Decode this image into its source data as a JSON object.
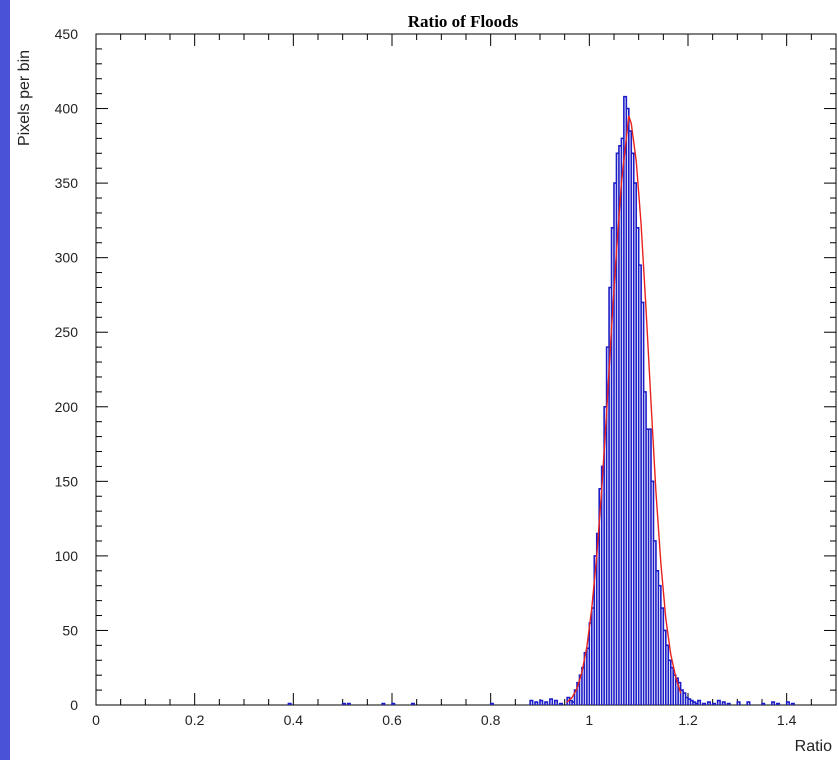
{
  "colors": {
    "histogram": "#1c1cc8",
    "fit": "#e8231e",
    "left_strip": "#4a52d8",
    "axes": "#000000"
  },
  "chart_data": {
    "type": "line",
    "title": "Ratio of Floods",
    "xlabel": "Ratio",
    "ylabel": "Pixels per bin",
    "xlim": [
      0,
      1.5
    ],
    "ylim": [
      0,
      450
    ],
    "x_ticks": [
      0,
      0.2,
      0.4,
      0.6,
      0.8,
      1,
      1.2,
      1.4
    ],
    "x_tick_labels": [
      "0",
      "0.2",
      "0.4",
      "0.6",
      "0.8",
      "1",
      "1.2",
      "1.4"
    ],
    "y_ticks": [
      0,
      50,
      100,
      150,
      200,
      250,
      300,
      350,
      400,
      450
    ],
    "y_tick_labels": [
      "0",
      "50",
      "100",
      "150",
      "200",
      "250",
      "300",
      "350",
      "400",
      "450"
    ],
    "grid": false,
    "bin_width": 0.005,
    "series": [
      {
        "style": "step",
        "color": "#1c1cc8",
        "x": [
          0.39,
          0.5,
          0.51,
          0.58,
          0.6,
          0.64,
          0.8,
          0.88,
          0.89,
          0.9,
          0.91,
          0.92,
          0.93,
          0.94,
          0.955,
          0.96,
          0.965,
          0.97,
          0.975,
          0.98,
          0.985,
          0.99,
          0.995,
          1.0,
          1.005,
          1.01,
          1.015,
          1.02,
          1.025,
          1.03,
          1.035,
          1.04,
          1.045,
          1.05,
          1.055,
          1.06,
          1.065,
          1.07,
          1.075,
          1.08,
          1.085,
          1.09,
          1.095,
          1.1,
          1.105,
          1.11,
          1.115,
          1.12,
          1.125,
          1.13,
          1.135,
          1.14,
          1.145,
          1.15,
          1.155,
          1.16,
          1.165,
          1.17,
          1.175,
          1.18,
          1.185,
          1.19,
          1.195,
          1.2,
          1.205,
          1.21,
          1.215,
          1.22,
          1.23,
          1.24,
          1.25,
          1.26,
          1.27,
          1.28,
          1.3,
          1.32,
          1.35,
          1.37,
          1.38,
          1.4,
          1.41
        ],
        "values": [
          1,
          1,
          1,
          1,
          1,
          1,
          1,
          3,
          2,
          3,
          2,
          4,
          3,
          1,
          5,
          3,
          2,
          10,
          15,
          20,
          25,
          35,
          38,
          55,
          65,
          100,
          115,
          145,
          160,
          200,
          240,
          280,
          320,
          350,
          370,
          375,
          380,
          408,
          400,
          385,
          370,
          350,
          320,
          295,
          270,
          210,
          185,
          185,
          150,
          110,
          90,
          80,
          65,
          50,
          40,
          30,
          25,
          20,
          18,
          15,
          10,
          8,
          5,
          4,
          3,
          2,
          1,
          3,
          1,
          2,
          1,
          3,
          2,
          1,
          2,
          2,
          1,
          2,
          1,
          2,
          1
        ]
      },
      {
        "style": "line",
        "color": "#e8231e",
        "x": [
          0.955,
          0.965,
          0.975,
          0.985,
          0.995,
          1.005,
          1.015,
          1.025,
          1.035,
          1.045,
          1.055,
          1.065,
          1.075,
          1.08,
          1.085,
          1.095,
          1.105,
          1.115,
          1.125,
          1.135,
          1.145,
          1.155,
          1.165,
          1.175,
          1.185
        ],
        "values": [
          2,
          5,
          11,
          22,
          39,
          65,
          100,
          144,
          196,
          253,
          304,
          350,
          380,
          395,
          390,
          365,
          322,
          265,
          203,
          143,
          95,
          58,
          34,
          19,
          8
        ]
      }
    ]
  }
}
